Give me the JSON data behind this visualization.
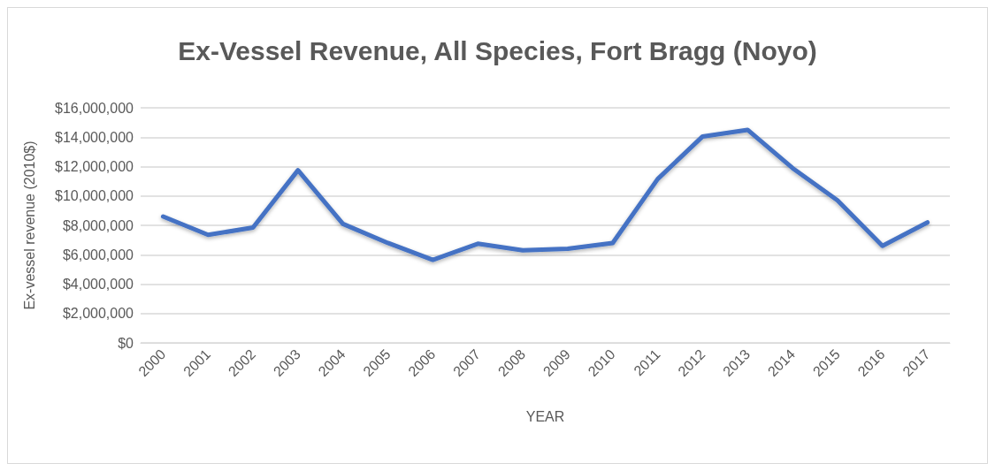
{
  "chart_data": {
    "type": "line",
    "title": "Ex-Vessel Revenue, All Species, Fort Bragg (Noyo)",
    "xlabel": "YEAR",
    "ylabel": "Ex-vessel revenue (2010$)",
    "categories": [
      "2000",
      "2001",
      "2002",
      "2003",
      "2004",
      "2005",
      "2006",
      "2007",
      "2008",
      "2009",
      "2010",
      "2011",
      "2012",
      "2013",
      "2014",
      "2015",
      "2016",
      "2017"
    ],
    "series": [
      {
        "color": "#4472c4",
        "values": [
          8600000,
          7350000,
          7850000,
          11750000,
          8100000,
          6800000,
          5650000,
          6750000,
          6300000,
          6400000,
          6800000,
          11150000,
          14050000,
          14500000,
          11900000,
          9700000,
          6600000,
          8200000
        ]
      }
    ],
    "ylim": [
      0,
      16000000
    ],
    "yticks": [
      {
        "value": 0,
        "label": "$0"
      },
      {
        "value": 2000000,
        "label": "$2,000,000"
      },
      {
        "value": 4000000,
        "label": "$4,000,000"
      },
      {
        "value": 6000000,
        "label": "$6,000,000"
      },
      {
        "value": 8000000,
        "label": "$8,000,000"
      },
      {
        "value": 10000000,
        "label": "$10,000,000"
      },
      {
        "value": 12000000,
        "label": "$12,000,000"
      },
      {
        "value": 14000000,
        "label": "$14,000,000"
      },
      {
        "value": 16000000,
        "label": "$16,000,000"
      }
    ],
    "grid": "y",
    "marker": "none",
    "line_style": "solid"
  }
}
